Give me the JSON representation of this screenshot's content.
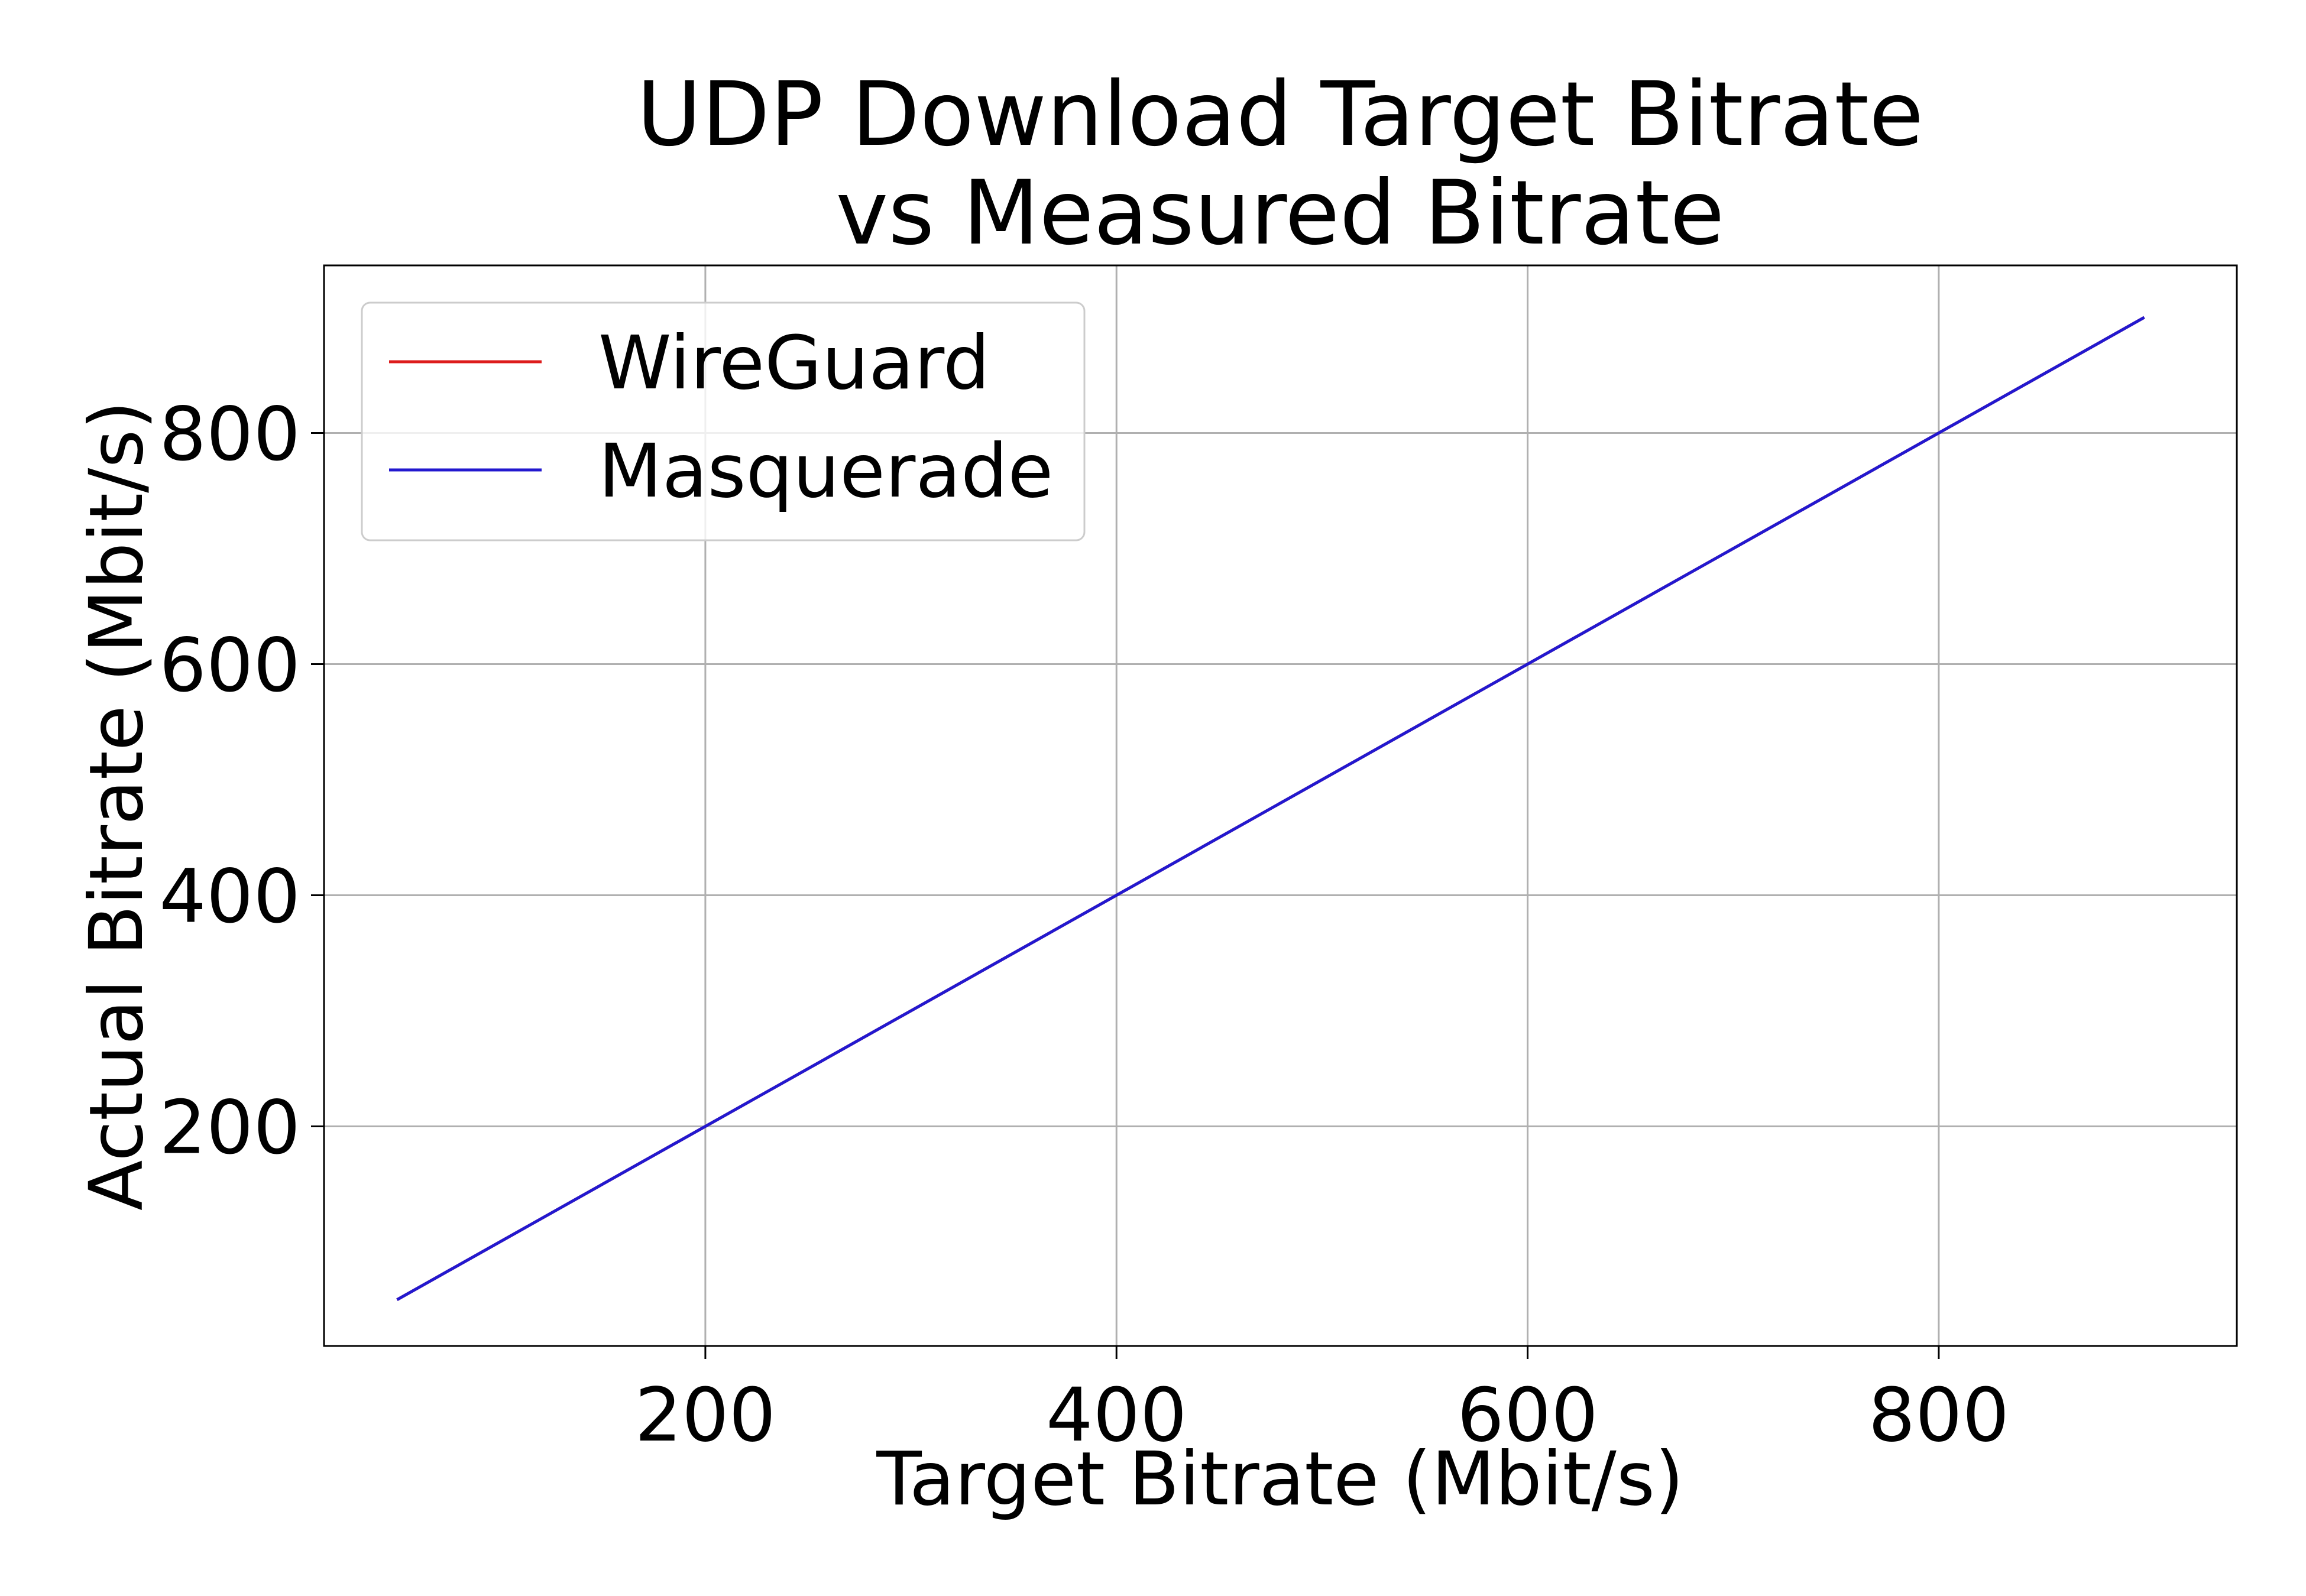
{
  "chart_data": {
    "type": "line",
    "title_line1": "UDP Download Target Bitrate",
    "title_line2": "vs Measured Bitrate",
    "xlabel": "Target Bitrate (Mbit/s)",
    "ylabel": "Actual Bitrate (Mbit/s)",
    "xlim": [
      14.5,
      945
    ],
    "ylim": [
      10,
      945
    ],
    "xticks": [
      200,
      400,
      600,
      800
    ],
    "yticks": [
      200,
      400,
      600,
      800
    ],
    "grid": true,
    "legend_position": "top-left",
    "series": [
      {
        "name": "WireGuard",
        "color": "#dd1c1c",
        "x": [
          50,
          900
        ],
        "y": [
          50,
          900
        ]
      },
      {
        "name": "Masquerade",
        "color": "#2218cf",
        "x": [
          50,
          900
        ],
        "y": [
          50,
          900
        ]
      }
    ]
  }
}
